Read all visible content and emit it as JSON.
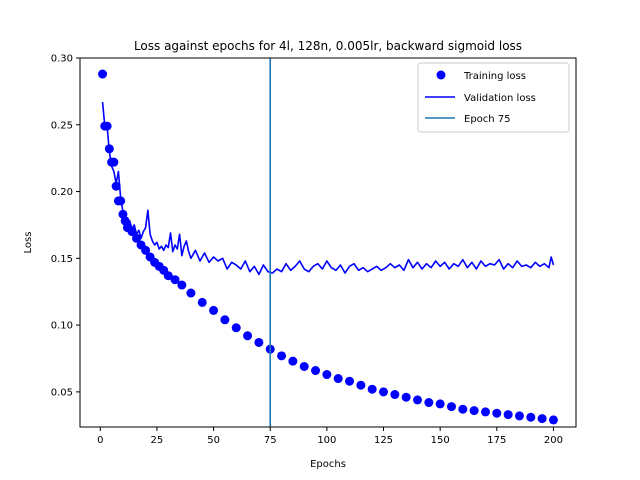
{
  "chart_data": {
    "type": "line",
    "title": "Loss against epochs for 4l, 128n, 0.005lr, backward sigmoid loss",
    "xlabel": "Epochs",
    "ylabel": "Loss",
    "xlim": [
      -8.95,
      209.95
    ],
    "ylim": [
      0.0237,
      0.3
    ],
    "xticks": [
      0,
      25,
      50,
      75,
      100,
      125,
      150,
      175,
      200
    ],
    "yticks": [
      0.05,
      0.1,
      0.15,
      0.2,
      0.25,
      0.3
    ],
    "ytick_labels": [
      "0.05",
      "0.10",
      "0.15",
      "0.20",
      "0.25",
      "0.30"
    ],
    "grid": false,
    "legend_position": "top-right",
    "series": [
      {
        "name": "Training loss",
        "style": "markers",
        "color": "#0000ff",
        "x": [
          1,
          2,
          3,
          4,
          5,
          6,
          7,
          8,
          9,
          10,
          11,
          12,
          14,
          16,
          18,
          20,
          22,
          24,
          26,
          28,
          30,
          33,
          36,
          40,
          45,
          50,
          55,
          60,
          65,
          70,
          75,
          80,
          85,
          90,
          95,
          100,
          105,
          110,
          115,
          120,
          125,
          130,
          135,
          140,
          145,
          150,
          155,
          160,
          165,
          170,
          175,
          180,
          185,
          190,
          195,
          200
        ],
        "values": [
          0.288,
          0.249,
          0.249,
          0.232,
          0.222,
          0.222,
          0.204,
          0.193,
          0.193,
          0.183,
          0.178,
          0.173,
          0.17,
          0.165,
          0.16,
          0.156,
          0.151,
          0.147,
          0.144,
          0.141,
          0.137,
          0.134,
          0.13,
          0.124,
          0.117,
          0.111,
          0.104,
          0.098,
          0.092,
          0.087,
          0.082,
          0.077,
          0.073,
          0.069,
          0.066,
          0.063,
          0.06,
          0.058,
          0.055,
          0.052,
          0.05,
          0.048,
          0.046,
          0.044,
          0.042,
          0.041,
          0.039,
          0.037,
          0.036,
          0.035,
          0.034,
          0.033,
          0.032,
          0.031,
          0.03,
          0.029
        ]
      },
      {
        "name": "Validation loss",
        "style": "line",
        "color": "#0000ff",
        "x": [
          1,
          2,
          3,
          4,
          5,
          6,
          7,
          8,
          9,
          10,
          11,
          12,
          13,
          14,
          15,
          16,
          17,
          18,
          19,
          20,
          21,
          22,
          23,
          24,
          25,
          26,
          27,
          28,
          29,
          30,
          31,
          32,
          33,
          34,
          35,
          36,
          37,
          38,
          39,
          40,
          42,
          44,
          46,
          48,
          50,
          52,
          54,
          56,
          58,
          60,
          62,
          64,
          66,
          68,
          70,
          72,
          74,
          76,
          78,
          80,
          82,
          84,
          86,
          88,
          90,
          92,
          94,
          96,
          98,
          100,
          102,
          104,
          106,
          108,
          110,
          112,
          114,
          116,
          118,
          120,
          122,
          124,
          126,
          128,
          130,
          132,
          134,
          136,
          138,
          140,
          142,
          144,
          146,
          148,
          150,
          152,
          154,
          156,
          158,
          160,
          162,
          164,
          166,
          168,
          170,
          172,
          174,
          176,
          178,
          180,
          182,
          184,
          186,
          188,
          190,
          192,
          194,
          196,
          198,
          199,
          200
        ],
        "values": [
          0.267,
          0.249,
          0.249,
          0.23,
          0.219,
          0.215,
          0.206,
          0.215,
          0.195,
          0.185,
          0.18,
          0.175,
          0.178,
          0.172,
          0.175,
          0.168,
          0.171,
          0.165,
          0.17,
          0.173,
          0.186,
          0.168,
          0.163,
          0.16,
          0.162,
          0.157,
          0.159,
          0.156,
          0.16,
          0.158,
          0.169,
          0.155,
          0.16,
          0.157,
          0.168,
          0.152,
          0.159,
          0.163,
          0.155,
          0.15,
          0.156,
          0.148,
          0.154,
          0.147,
          0.151,
          0.148,
          0.15,
          0.142,
          0.147,
          0.145,
          0.142,
          0.148,
          0.14,
          0.144,
          0.138,
          0.145,
          0.14,
          0.139,
          0.142,
          0.14,
          0.146,
          0.141,
          0.144,
          0.148,
          0.142,
          0.14,
          0.144,
          0.146,
          0.142,
          0.148,
          0.143,
          0.141,
          0.145,
          0.139,
          0.144,
          0.146,
          0.141,
          0.143,
          0.14,
          0.142,
          0.144,
          0.141,
          0.143,
          0.146,
          0.143,
          0.145,
          0.141,
          0.149,
          0.143,
          0.147,
          0.142,
          0.146,
          0.143,
          0.148,
          0.144,
          0.147,
          0.142,
          0.146,
          0.144,
          0.149,
          0.143,
          0.147,
          0.142,
          0.148,
          0.144,
          0.146,
          0.145,
          0.149,
          0.142,
          0.146,
          0.143,
          0.148,
          0.144,
          0.145,
          0.143,
          0.147,
          0.144,
          0.146,
          0.143,
          0.151,
          0.145
        ]
      },
      {
        "name": "Epoch 75",
        "style": "vline",
        "color": "#1f77b4",
        "x": 75
      }
    ]
  }
}
